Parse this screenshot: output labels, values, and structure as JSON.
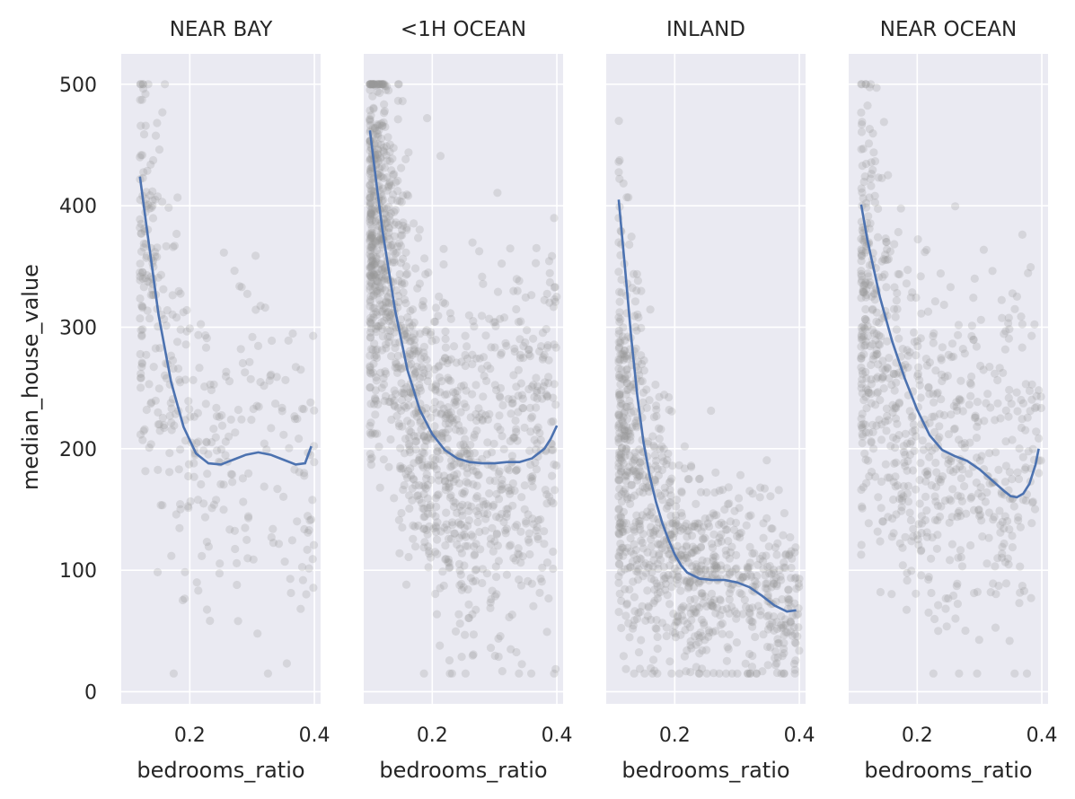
{
  "chart_data": {
    "type": "scatter",
    "ylabel": "median_house_value",
    "xlabel": "bedrooms_ratio",
    "xlim": [
      0.09,
      0.41
    ],
    "ylim": [
      -10,
      525
    ],
    "x_ticks": [
      0.2,
      0.4
    ],
    "y_ticks": [
      0,
      100,
      200,
      300,
      400,
      500
    ],
    "x_tick_labels": [
      "0.2",
      "0.4"
    ],
    "y_tick_labels": [
      "0",
      "100",
      "200",
      "300",
      "400",
      "500"
    ],
    "colors": {
      "points": "#999999",
      "line": "#4c72b0",
      "background": "#eaeaf2"
    },
    "panels": [
      {
        "title": "NEAR BAY",
        "x_range": [
          0.12,
          0.4
        ],
        "approx_points": 380,
        "point_cloud": [
          {
            "x": 0.13,
            "mean": 370,
            "sd": 75
          },
          {
            "x": 0.16,
            "mean": 290,
            "sd": 85
          },
          {
            "x": 0.2,
            "mean": 190,
            "sd": 60
          },
          {
            "x": 0.25,
            "mean": 200,
            "sd": 75
          },
          {
            "x": 0.3,
            "mean": 230,
            "sd": 80
          },
          {
            "x": 0.35,
            "mean": 190,
            "sd": 60
          },
          {
            "x": 0.4,
            "mean": 180,
            "sd": 60
          }
        ],
        "smooth_line": {
          "x": [
            0.12,
            0.13,
            0.15,
            0.17,
            0.19,
            0.21,
            0.23,
            0.25,
            0.27,
            0.29,
            0.31,
            0.33,
            0.35,
            0.37,
            0.385,
            0.395
          ],
          "y": [
            424,
            385,
            310,
            255,
            218,
            196,
            188,
            187,
            191,
            195,
            197,
            195,
            191,
            187,
            188,
            202
          ]
        }
      },
      {
        "title": "<1H OCEAN",
        "x_range": [
          0.1,
          0.4
        ],
        "approx_points": 1400,
        "point_cloud": [
          {
            "x": 0.12,
            "mean": 380,
            "sd": 80
          },
          {
            "x": 0.15,
            "mean": 300,
            "sd": 80
          },
          {
            "x": 0.2,
            "mean": 200,
            "sd": 65
          },
          {
            "x": 0.25,
            "mean": 180,
            "sd": 70
          },
          {
            "x": 0.3,
            "mean": 190,
            "sd": 80
          },
          {
            "x": 0.35,
            "mean": 200,
            "sd": 90
          },
          {
            "x": 0.4,
            "mean": 220,
            "sd": 90
          }
        ],
        "smooth_line": {
          "x": [
            0.1,
            0.11,
            0.12,
            0.14,
            0.16,
            0.18,
            0.2,
            0.22,
            0.24,
            0.26,
            0.28,
            0.3,
            0.32,
            0.34,
            0.36,
            0.38,
            0.39,
            0.4
          ],
          "y": [
            462,
            420,
            380,
            315,
            265,
            232,
            212,
            199,
            192,
            189,
            188,
            188,
            189,
            189,
            192,
            200,
            208,
            219
          ]
        }
      },
      {
        "title": "INLAND",
        "x_range": [
          0.11,
          0.4
        ],
        "approx_points": 1000,
        "point_cloud": [
          {
            "x": 0.12,
            "mean": 220,
            "sd": 90
          },
          {
            "x": 0.15,
            "mean": 160,
            "sd": 70
          },
          {
            "x": 0.2,
            "mean": 110,
            "sd": 50
          },
          {
            "x": 0.25,
            "mean": 90,
            "sd": 40
          },
          {
            "x": 0.3,
            "mean": 90,
            "sd": 45
          },
          {
            "x": 0.35,
            "mean": 85,
            "sd": 40
          },
          {
            "x": 0.4,
            "mean": 70,
            "sd": 30
          }
        ],
        "smooth_line": {
          "x": [
            0.11,
            0.12,
            0.13,
            0.14,
            0.15,
            0.16,
            0.17,
            0.18,
            0.19,
            0.2,
            0.21,
            0.22,
            0.24,
            0.26,
            0.28,
            0.3,
            0.32,
            0.34,
            0.36,
            0.38,
            0.395
          ],
          "y": [
            405,
            350,
            292,
            243,
            205,
            177,
            156,
            139,
            125,
            113,
            104,
            98,
            93,
            92,
            92,
            90,
            86,
            79,
            71,
            66,
            67
          ]
        }
      },
      {
        "title": "NEAR OCEAN",
        "x_range": [
          0.11,
          0.4
        ],
        "approx_points": 750,
        "point_cloud": [
          {
            "x": 0.12,
            "mean": 330,
            "sd": 90
          },
          {
            "x": 0.16,
            "mean": 260,
            "sd": 90
          },
          {
            "x": 0.2,
            "mean": 200,
            "sd": 80
          },
          {
            "x": 0.25,
            "mean": 200,
            "sd": 80
          },
          {
            "x": 0.3,
            "mean": 190,
            "sd": 80
          },
          {
            "x": 0.35,
            "mean": 180,
            "sd": 80
          },
          {
            "x": 0.4,
            "mean": 180,
            "sd": 70
          }
        ],
        "smooth_line": {
          "x": [
            0.11,
            0.12,
            0.14,
            0.16,
            0.18,
            0.2,
            0.22,
            0.24,
            0.26,
            0.28,
            0.3,
            0.32,
            0.34,
            0.35,
            0.36,
            0.37,
            0.38,
            0.39,
            0.395
          ],
          "y": [
            401,
            372,
            325,
            288,
            258,
            232,
            211,
            199,
            194,
            190,
            183,
            174,
            165,
            161,
            160,
            163,
            171,
            187,
            200
          ]
        }
      }
    ]
  }
}
